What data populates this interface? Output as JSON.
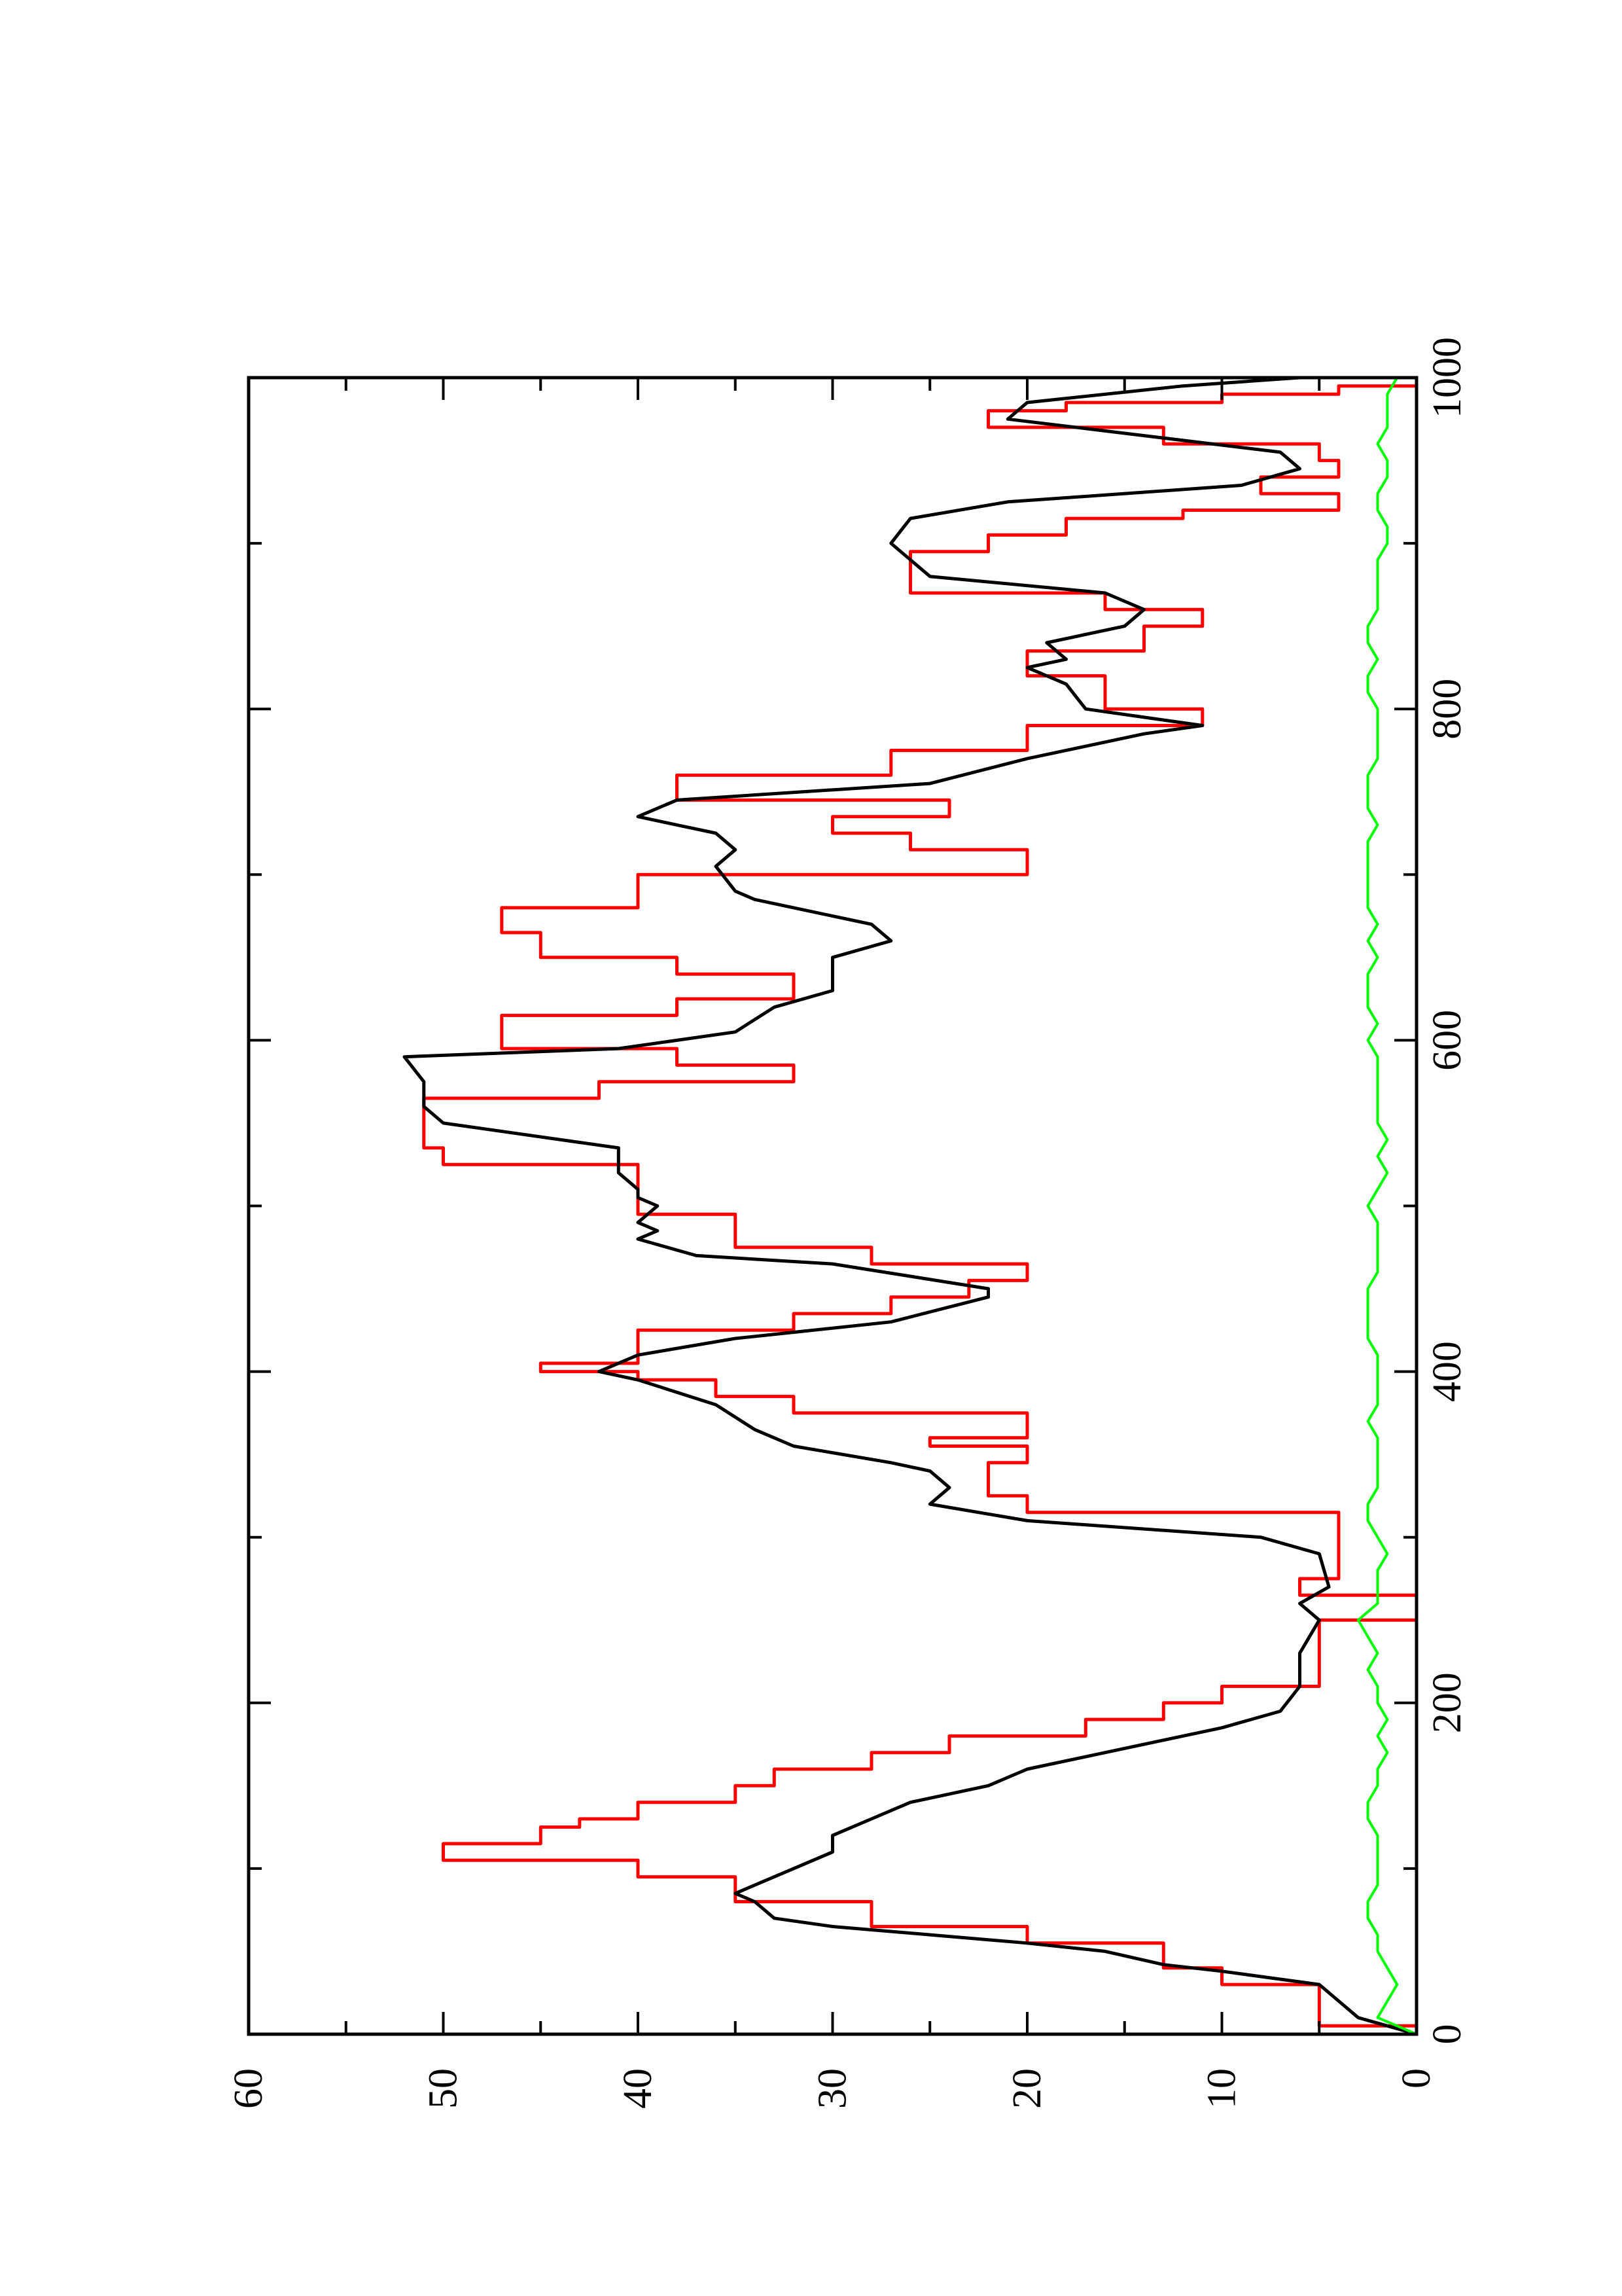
{
  "chart_data": {
    "type": "line",
    "title": "",
    "xlabel": "",
    "ylabel": "",
    "xlim": [
      0,
      1000
    ],
    "ylim": [
      0,
      60
    ],
    "x_ticks": [
      0,
      200,
      400,
      600,
      800,
      1000
    ],
    "y_ticks": [
      0,
      10,
      20,
      30,
      40,
      50,
      60
    ],
    "x_tick_labels": [
      "0",
      "200",
      "400",
      "600",
      "800",
      "1000"
    ],
    "y_tick_labels": [
      "0",
      "10",
      "20",
      "30",
      "40",
      "50",
      "60"
    ],
    "rotation": "page rotated 90 degrees counter-clockwise",
    "grid": false,
    "legend": "none",
    "series": [
      {
        "color": "#ff0000",
        "style": "step",
        "x": [
          0,
          5,
          30,
          40,
          55,
          65,
          80,
          95,
          105,
          115,
          125,
          130,
          140,
          150,
          160,
          170,
          180,
          190,
          200,
          210,
          250,
          265,
          275,
          300,
          315,
          325,
          345,
          355,
          360,
          375,
          385,
          395,
          400,
          405,
          425,
          435,
          445,
          455,
          465,
          475,
          495,
          505,
          515,
          525,
          535,
          550,
          565,
          575,
          585,
          595,
          615,
          625,
          640,
          650,
          665,
          680,
          700,
          715,
          725,
          735,
          745,
          760,
          775,
          790,
          800,
          810,
          820,
          835,
          850,
          860,
          870,
          880,
          895,
          905,
          915,
          920,
          930,
          940,
          950,
          960,
          970,
          980,
          985,
          990,
          995,
          1000
        ],
        "y": [
          0,
          5,
          10,
          13,
          20,
          28,
          35,
          40,
          50,
          45,
          43,
          40,
          35,
          33,
          28,
          24,
          17,
          13,
          10,
          5,
          0,
          6,
          4,
          4,
          20,
          22,
          20,
          25,
          20,
          32,
          36,
          40,
          45,
          40,
          32,
          27,
          23,
          20,
          28,
          35,
          40,
          40,
          40,
          50,
          51,
          51,
          42,
          32,
          38,
          47,
          38,
          32,
          38,
          45,
          47,
          40,
          20,
          26,
          30,
          24,
          38,
          27,
          20,
          11,
          16,
          16,
          20,
          14,
          11,
          16,
          26,
          26,
          22,
          18,
          12,
          4,
          8,
          4,
          5,
          13,
          22,
          18,
          10,
          4,
          0,
          0
        ]
      },
      {
        "color": "#000000",
        "style": "line",
        "x": [
          0,
          5,
          10,
          20,
          30,
          38,
          42,
          50,
          55,
          60,
          65,
          70,
          80,
          85,
          90,
          100,
          110,
          120,
          130,
          140,
          150,
          160,
          170,
          180,
          185,
          195,
          210,
          230,
          250,
          260,
          270,
          290,
          300,
          310,
          320,
          330,
          340,
          345,
          355,
          365,
          380,
          395,
          400,
          410,
          420,
          430,
          445,
          450,
          465,
          470,
          480,
          485,
          490,
          500,
          505,
          510,
          520,
          530,
          535,
          550,
          560,
          575,
          590,
          595,
          605,
          620,
          630,
          650,
          660,
          670,
          685,
          690,
          705,
          715,
          725,
          730,
          735,
          745,
          755,
          770,
          785,
          790,
          795,
          800,
          815,
          825,
          830,
          840,
          850,
          860,
          870,
          880,
          890,
          900,
          915,
          925,
          935,
          945,
          955,
          965,
          975,
          985,
          995,
          1000
        ],
        "y": [
          0,
          1.5,
          3,
          4,
          5,
          10,
          13,
          16,
          20,
          25,
          30,
          33,
          34,
          35,
          34,
          32,
          30,
          30,
          28,
          26,
          22,
          20,
          16,
          12,
          10,
          7,
          6,
          6,
          5,
          6,
          4.5,
          5,
          8,
          20,
          25,
          24,
          25,
          27,
          32,
          34,
          36,
          40,
          42,
          40,
          35,
          27,
          22,
          22,
          30,
          37,
          40,
          39,
          40,
          39,
          40,
          40,
          41,
          41,
          41,
          50,
          51,
          51,
          52,
          41,
          35,
          33,
          30,
          30,
          27,
          28,
          34,
          35,
          36,
          35,
          36,
          38,
          40,
          38,
          25,
          20,
          14,
          11,
          14,
          17,
          18,
          20,
          18,
          19,
          15,
          14,
          16,
          25,
          26,
          27,
          26,
          21,
          9,
          6,
          7,
          14,
          21,
          20,
          12,
          6
        ]
      },
      {
        "color": "#00ff00",
        "style": "noise",
        "x": [
          0,
          5,
          10,
          20,
          30,
          40,
          50,
          60,
          70,
          80,
          90,
          100,
          110,
          120,
          130,
          140,
          150,
          160,
          170,
          180,
          190,
          200,
          210,
          220,
          230,
          240,
          250,
          260,
          270,
          280,
          290,
          300,
          310,
          320,
          330,
          340,
          350,
          360,
          370,
          380,
          390,
          400,
          410,
          420,
          430,
          440,
          450,
          460,
          470,
          480,
          490,
          500,
          510,
          520,
          530,
          540,
          550,
          560,
          570,
          580,
          590,
          600,
          610,
          620,
          630,
          640,
          650,
          660,
          670,
          680,
          690,
          700,
          710,
          720,
          730,
          740,
          750,
          760,
          770,
          780,
          790,
          800,
          810,
          820,
          830,
          840,
          850,
          860,
          870,
          880,
          890,
          900,
          910,
          920,
          930,
          940,
          950,
          960,
          970,
          980,
          990,
          1000
        ],
        "y": [
          0,
          1,
          2,
          1.5,
          1,
          1.5,
          2,
          2,
          2.5,
          2.5,
          2,
          2,
          2,
          2,
          2.5,
          2.5,
          2,
          2,
          1.5,
          2,
          1.5,
          2,
          2,
          2.5,
          2,
          2.5,
          3,
          2,
          2,
          2,
          1.5,
          2,
          2.5,
          2.5,
          2,
          2,
          2,
          2,
          2.5,
          2,
          2,
          2,
          2,
          2.5,
          2.5,
          2.5,
          2.5,
          2,
          2,
          2,
          2,
          2.5,
          2,
          1.5,
          2,
          1.5,
          2,
          2,
          2,
          2,
          2,
          2.5,
          2,
          2.5,
          2.5,
          2.5,
          2,
          2.5,
          2,
          2.5,
          2.5,
          2.5,
          2.5,
          2.5,
          2,
          2.5,
          2.5,
          2.5,
          2,
          2,
          2,
          2,
          2.5,
          2.5,
          2,
          2.5,
          2.5,
          2,
          2,
          2,
          2,
          1.5,
          1.5,
          2,
          2,
          1.5,
          1.5,
          2,
          1.5,
          1.5,
          1.5,
          1
        ]
      }
    ]
  }
}
